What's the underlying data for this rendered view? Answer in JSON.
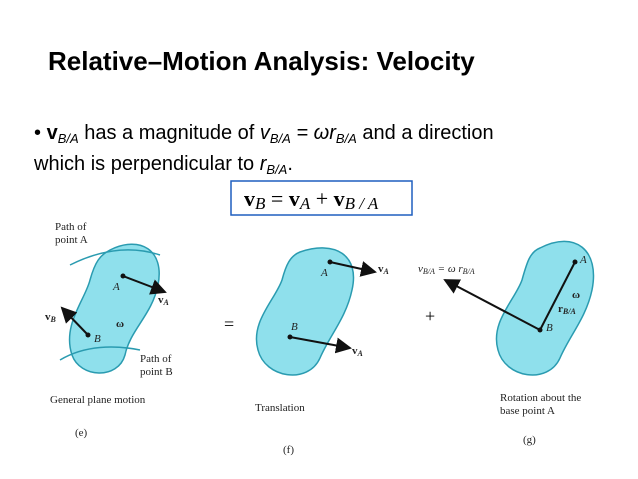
{
  "title": "Relative–Motion Analysis: Velocity",
  "bullet": {
    "line1": [
      "v",
      "B/A",
      " has a magnitude of ",
      "v",
      "B/A",
      " = ωr",
      "B/A",
      " and a direction"
    ],
    "line2": [
      "which is perpendicular to ",
      "r",
      "B/A",
      "."
    ]
  },
  "equation": [
    "v",
    "B",
    " = ",
    "v",
    "A",
    " + ",
    "v",
    "B / A"
  ],
  "figures": [
    {
      "path_a": [
        "Path of",
        "point A"
      ],
      "point_a": "A",
      "point_b": "B",
      "omega": "ω",
      "va": [
        "v",
        "A"
      ],
      "vb": [
        "v",
        "B"
      ],
      "path_b": [
        "Path of",
        "point B"
      ],
      "caption": [
        "General plane motion"
      ],
      "label": "(e)"
    },
    {
      "operator": "=",
      "point_a": "A",
      "point_b": "B",
      "va_top": [
        "v",
        "A"
      ],
      "va_bottom": [
        "v",
        "A"
      ],
      "caption": [
        "Translation"
      ],
      "label": "(f)"
    },
    {
      "operator": "+",
      "vba": [
        "v",
        "B/A",
        " = ω r",
        "B/A"
      ],
      "point_a": "A",
      "point_b": "B",
      "omega": "ω",
      "rba": [
        "r",
        "B/A"
      ],
      "caption": [
        "Rotation about the",
        "base point A"
      ],
      "label": "(g)"
    }
  ]
}
